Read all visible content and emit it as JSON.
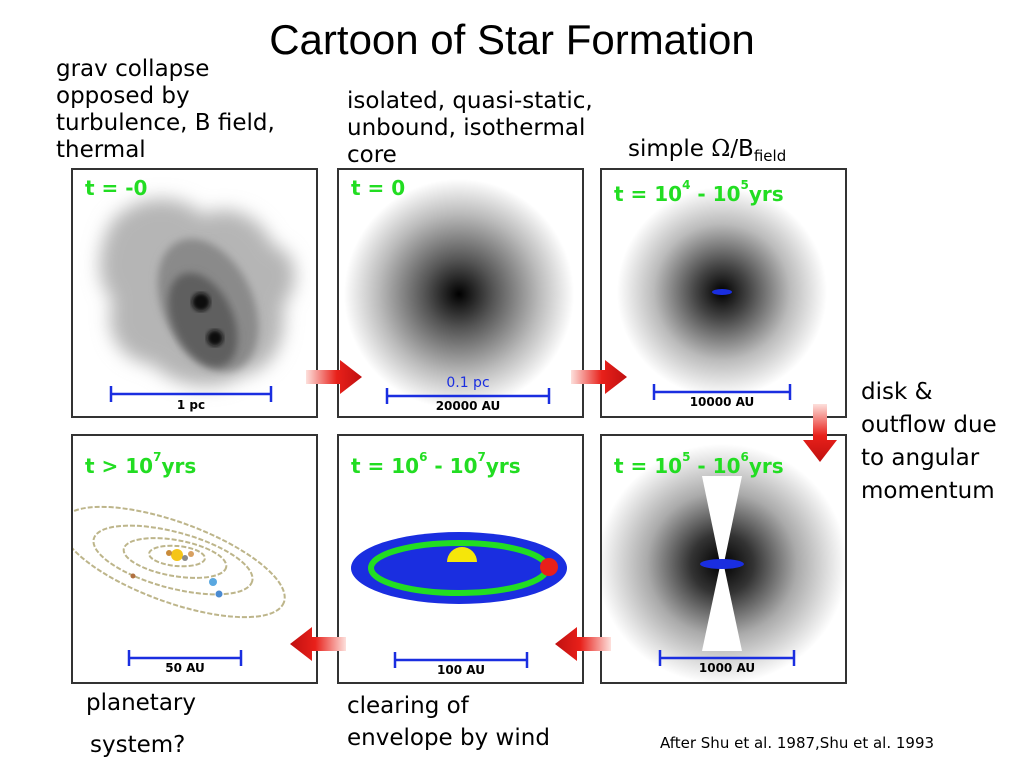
{
  "title": "Cartoon of Star Formation",
  "captions": {
    "stage1": [
      "grav collapse",
      "opposed by",
      "turbulence, B field,",
      "thermal"
    ],
    "stage2": [
      "isolated, quasi-static,",
      "unbound, isothermal",
      "core"
    ],
    "stage3": {
      "prefix": "simple ",
      "omega": "Ω",
      "slash": "/B",
      "subscript": "field"
    },
    "stage4": [
      "disk &",
      "outflow due",
      "to angular",
      "momentum"
    ],
    "stage5": [
      "clearing of",
      "envelope by wind"
    ],
    "stage6": [
      "planetary",
      "system?"
    ]
  },
  "panels": {
    "p1": {
      "time": "t = -0",
      "scale": "1 pc"
    },
    "p2": {
      "time": "t = 0",
      "scale": "20000 AU",
      "scale_top": "0.1 pc"
    },
    "p3": {
      "time_base": "t = 10",
      "exp1": "4",
      "mid": " - 10",
      "exp2": "5",
      "unit": "yrs",
      "scale": "10000 AU"
    },
    "p4": {
      "time_base": "t = 10",
      "exp1": "5",
      "mid": " - 10",
      "exp2": "6",
      "unit": "yrs",
      "scale": "1000 AU"
    },
    "p5": {
      "time_base": "t = 10",
      "exp1": "6",
      "mid": " - 10",
      "exp2": "7",
      "unit": "yrs",
      "scale": "100 AU"
    },
    "p6": {
      "time_base": "t > 10",
      "exp1": "7",
      "unit": "yrs",
      "scale": "50 AU"
    }
  },
  "credit": "After Shu et al. 1987,Shu et al. 1993",
  "colors": {
    "time_label": "#22dd22",
    "scale_bar": "#1a2ee0",
    "arrow": "#e8201a",
    "disk": "#1a2ee0",
    "ring": "#22dd22"
  }
}
